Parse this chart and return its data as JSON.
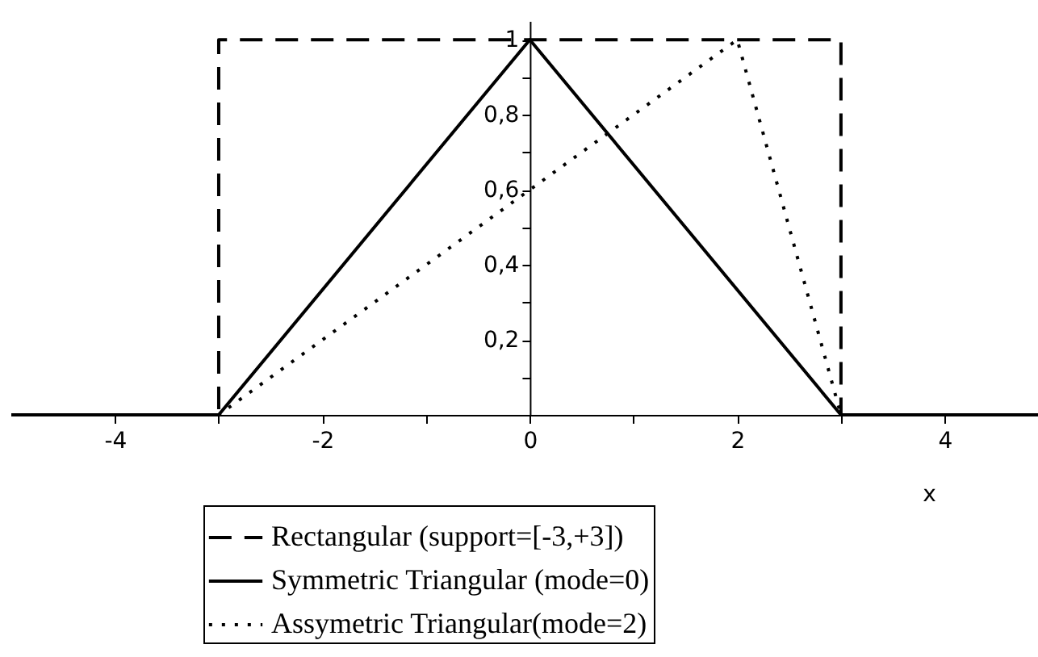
{
  "chart_data": {
    "type": "line",
    "xlabel": "x",
    "xlim": [
      -5,
      4.9
    ],
    "ylim": [
      0,
      1.05
    ],
    "xticks": [
      -4,
      {
        "value": -3,
        "label": null
      },
      -2,
      {
        "value": -1,
        "label": null
      },
      0,
      {
        "value": 1,
        "label": null
      },
      2,
      {
        "value": 3,
        "label": null
      },
      4
    ],
    "yticks": [
      {
        "value": 0.1,
        "label": null
      },
      {
        "value": 0.2,
        "label": "0,2"
      },
      {
        "value": 0.3,
        "label": null
      },
      {
        "value": 0.4,
        "label": "0,4"
      },
      {
        "value": 0.5,
        "label": null
      },
      {
        "value": 0.6,
        "label": "0,6"
      },
      {
        "value": 0.7,
        "label": null
      },
      {
        "value": 0.8,
        "label": "0,8"
      },
      {
        "value": 0.9,
        "label": null
      },
      1
    ],
    "legend": "bottom",
    "grid": false,
    "marker": "none",
    "series": [
      {
        "name": "Rectangular (support=[-3,+3])",
        "color": "#000000",
        "line_style": "dashed",
        "x": [
          -5,
          -3,
          -3,
          3,
          3,
          4.9
        ],
        "values": [
          0,
          0,
          1,
          1,
          0,
          0
        ]
      },
      {
        "name": "Symmetric Triangular (mode=0)",
        "color": "#000000",
        "line_style": "solid",
        "x": [
          -5,
          -3,
          0,
          3,
          4.9
        ],
        "values": [
          0,
          0,
          1,
          0,
          0
        ]
      },
      {
        "name": "Assymetric Triangular(mode=2)",
        "color": "#000000",
        "line_style": "dotted",
        "x": [
          -5,
          -3,
          2,
          3,
          4.9
        ],
        "values": [
          0,
          0,
          1,
          0,
          0
        ]
      }
    ]
  }
}
